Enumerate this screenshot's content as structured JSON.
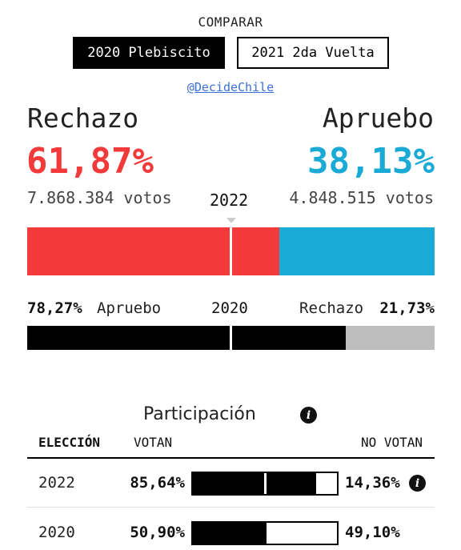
{
  "header": {
    "compare_label": "COMPARAR",
    "buttons": [
      {
        "label": "2020 Plebiscito",
        "selected": true
      },
      {
        "label": "2021 2da Vuelta",
        "selected": false
      }
    ],
    "source": "@DecideChile"
  },
  "colors": {
    "rechazo": "#f23a3a",
    "apruebo": "#1aaad6",
    "bar_2020_apruebo": "#000000",
    "bar_2020_rechazo": "#bdbdbd"
  },
  "current": {
    "year": "2022",
    "rechazo": {
      "label": "Rechazo",
      "pct": "61,87%",
      "votes": "7.868.384 votos",
      "value": 61.87
    },
    "apruebo": {
      "label": "Apruebo",
      "pct": "38,13%",
      "votes": "4.848.515 votos",
      "value": 38.13
    }
  },
  "previous": {
    "year": "2020",
    "apruebo": {
      "label": "Apruebo",
      "pct": "78,27%",
      "value": 78.27
    },
    "rechazo": {
      "label": "Rechazo",
      "pct": "21,73%",
      "value": 21.73
    }
  },
  "participation": {
    "title": "Participación",
    "columns": {
      "eleccion": "ELECCIÓN",
      "votan": "VOTAN",
      "no_votan": "NO VOTAN"
    },
    "rows": [
      {
        "year": "2022",
        "votan": "85,64%",
        "no_votan": "14,36%",
        "votan_value": 85.64,
        "has_info": true
      },
      {
        "year": "2020",
        "votan": "50,90%",
        "no_votan": "49,10%",
        "votan_value": 50.9,
        "has_info": false
      }
    ]
  },
  "icons": {
    "info": "info-icon",
    "marker": "triangle-down-marker"
  }
}
